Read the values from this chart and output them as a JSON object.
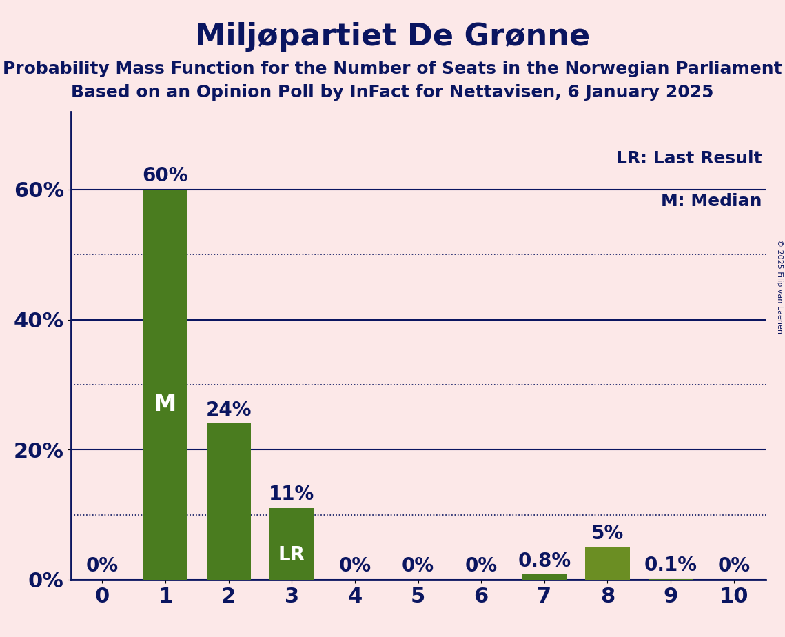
{
  "title": "Miljøpartiet De Grønne",
  "subtitle1": "Probability Mass Function for the Number of Seats in the Norwegian Parliament",
  "subtitle2": "Based on an Opinion Poll by InFact for Nettavisen, 6 January 2025",
  "categories": [
    0,
    1,
    2,
    3,
    4,
    5,
    6,
    7,
    8,
    9,
    10
  ],
  "values": [
    0.0,
    0.6,
    0.24,
    0.11,
    0.0,
    0.0,
    0.0,
    0.008,
    0.05,
    0.001,
    0.0
  ],
  "bar_colors": [
    "#4a7c1f",
    "#4a7c1f",
    "#4a7c1f",
    "#4a7c1f",
    "#4a7c1f",
    "#4a7c1f",
    "#4a7c1f",
    "#4a7c1f",
    "#6b8e23",
    "#4a7c1f",
    "#4a7c1f"
  ],
  "label_texts": [
    "0%",
    "60%",
    "24%",
    "11%",
    "0%",
    "0%",
    "0%",
    "0.8%",
    "5%",
    "0.1%",
    "0%"
  ],
  "lr_bar": 3,
  "median_bar": 1,
  "ylim": [
    0.0,
    0.72
  ],
  "yticks": [
    0.0,
    0.2,
    0.4,
    0.6
  ],
  "ytick_labels": [
    "0%",
    "20%",
    "40%",
    "60%"
  ],
  "dotted_yticks": [
    0.1,
    0.3,
    0.5
  ],
  "background_color": "#fce8e8",
  "bar_dark_green": "#4a7c1f",
  "bar_medium_green": "#6b8e23",
  "text_color": "#0a1560",
  "title_fontsize": 32,
  "subtitle_fontsize": 18,
  "axis_label_fontsize": 22,
  "bar_label_fontsize": 20,
  "legend_fontsize": 18,
  "copyright_text": "© 2025 Filip van Laenen",
  "legend_lr": "LR: Last Result",
  "legend_m": "M: Median"
}
